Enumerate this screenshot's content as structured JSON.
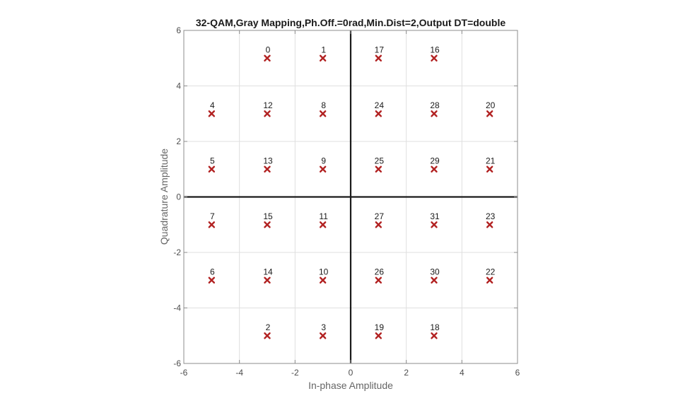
{
  "chart_data": {
    "type": "scatter",
    "title": "32-QAM,Gray Mapping,Ph.Off.=0rad,Min.Dist=2,Output DT=double",
    "xlabel": "In-phase Amplitude",
    "ylabel": "Quadrature Amplitude",
    "xlim": [
      -6,
      6
    ],
    "ylim": [
      -6,
      6
    ],
    "xticks": [
      -6,
      -4,
      -2,
      0,
      2,
      4,
      6
    ],
    "yticks": [
      -6,
      -4,
      -2,
      0,
      2,
      4,
      6
    ],
    "grid": true,
    "marker": "x",
    "marker_color": "#b22222",
    "points": [
      {
        "x": -3,
        "y": 5,
        "label": "0"
      },
      {
        "x": -1,
        "y": 5,
        "label": "1"
      },
      {
        "x": 1,
        "y": 5,
        "label": "17"
      },
      {
        "x": 3,
        "y": 5,
        "label": "16"
      },
      {
        "x": -5,
        "y": 3,
        "label": "4"
      },
      {
        "x": -3,
        "y": 3,
        "label": "12"
      },
      {
        "x": -1,
        "y": 3,
        "label": "8"
      },
      {
        "x": 1,
        "y": 3,
        "label": "24"
      },
      {
        "x": 3,
        "y": 3,
        "label": "28"
      },
      {
        "x": 5,
        "y": 3,
        "label": "20"
      },
      {
        "x": -5,
        "y": 1,
        "label": "5"
      },
      {
        "x": -3,
        "y": 1,
        "label": "13"
      },
      {
        "x": -1,
        "y": 1,
        "label": "9"
      },
      {
        "x": 1,
        "y": 1,
        "label": "25"
      },
      {
        "x": 3,
        "y": 1,
        "label": "29"
      },
      {
        "x": 5,
        "y": 1,
        "label": "21"
      },
      {
        "x": -5,
        "y": -1,
        "label": "7"
      },
      {
        "x": -3,
        "y": -1,
        "label": "15"
      },
      {
        "x": -1,
        "y": -1,
        "label": "11"
      },
      {
        "x": 1,
        "y": -1,
        "label": "27"
      },
      {
        "x": 3,
        "y": -1,
        "label": "31"
      },
      {
        "x": 5,
        "y": -1,
        "label": "23"
      },
      {
        "x": -5,
        "y": -3,
        "label": "6"
      },
      {
        "x": -3,
        "y": -3,
        "label": "14"
      },
      {
        "x": -1,
        "y": -3,
        "label": "10"
      },
      {
        "x": 1,
        "y": -3,
        "label": "26"
      },
      {
        "x": 3,
        "y": -3,
        "label": "30"
      },
      {
        "x": 5,
        "y": -3,
        "label": "22"
      },
      {
        "x": -3,
        "y": -5,
        "label": "2"
      },
      {
        "x": -1,
        "y": -5,
        "label": "3"
      },
      {
        "x": 1,
        "y": -5,
        "label": "19"
      },
      {
        "x": 3,
        "y": -5,
        "label": "18"
      }
    ]
  }
}
